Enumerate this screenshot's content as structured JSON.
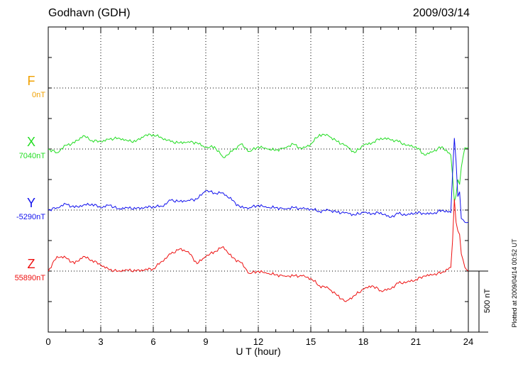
{
  "header": {
    "station": "Godhavn (GDH)",
    "date": "2009/03/14"
  },
  "colors": {
    "F": "#f0a000",
    "X": "#22dd22",
    "Y": "#1010ee",
    "Z": "#ee1010",
    "axis": "#000000"
  },
  "components": [
    {
      "key": "F",
      "letter": "F",
      "baseline_label": "0nT"
    },
    {
      "key": "X",
      "letter": "X",
      "baseline_label": "7040nT"
    },
    {
      "key": "Y",
      "letter": "Y",
      "baseline_label": "-5290nT"
    },
    {
      "key": "Z",
      "letter": "Z",
      "baseline_label": "55890nT"
    }
  ],
  "scale_bar": {
    "label": "500 nT",
    "value_nT": 500
  },
  "footnote": "Plotted at 2009/04/14 00:52 UT",
  "chart_data": {
    "type": "line",
    "title": "Godhavn (GDH) 2009/03/14",
    "xlabel": "U T (hour)",
    "ylabel": "",
    "xlim": [
      0,
      24
    ],
    "xticks": [
      0,
      3,
      6,
      9,
      12,
      15,
      18,
      21,
      24
    ],
    "units": "nT",
    "grid": true,
    "series": [
      {
        "name": "X",
        "baseline_nT": 7040,
        "x": [
          0,
          0.5,
          1,
          1.5,
          2,
          2.5,
          3,
          3.5,
          4,
          4.5,
          5,
          5.5,
          6,
          6.5,
          7,
          7.5,
          8,
          8.5,
          9,
          9.5,
          10,
          10.5,
          11,
          11.5,
          12,
          12.5,
          13,
          13.5,
          14,
          14.5,
          15,
          15.5,
          16,
          16.5,
          17,
          17.5,
          18,
          18.5,
          19,
          19.5,
          20,
          20.5,
          21,
          21.5,
          22,
          22.5,
          23,
          23.1,
          23.2,
          23.3,
          23.4,
          23.5,
          23.6,
          23.8,
          24
        ],
        "y": [
          0,
          -30,
          30,
          50,
          110,
          70,
          60,
          80,
          90,
          70,
          60,
          110,
          120,
          90,
          60,
          50,
          60,
          50,
          10,
          20,
          -70,
          -20,
          40,
          -20,
          20,
          0,
          -10,
          10,
          40,
          0,
          40,
          120,
          110,
          60,
          30,
          -30,
          30,
          50,
          90,
          80,
          60,
          30,
          20,
          -50,
          -20,
          20,
          -50,
          -220,
          -430,
          -380,
          -250,
          -290,
          -150,
          10,
          10
        ]
      },
      {
        "name": "Y",
        "baseline_nT": -5290,
        "x": [
          0,
          0.5,
          1,
          1.5,
          2,
          2.5,
          3,
          3.5,
          4,
          4.5,
          5,
          5.5,
          6,
          6.5,
          7,
          7.5,
          8,
          8.5,
          9,
          9.5,
          10,
          10.5,
          11,
          11.5,
          12,
          12.5,
          13,
          13.5,
          14,
          14.5,
          15,
          15.5,
          16,
          16.5,
          17,
          17.5,
          18,
          18.5,
          19,
          19.5,
          20,
          20.5,
          21,
          21.5,
          22,
          22.5,
          23,
          23.1,
          23.2,
          23.3,
          23.4,
          23.5,
          23.6,
          23.8,
          24
        ],
        "y": [
          0,
          20,
          50,
          20,
          40,
          50,
          20,
          40,
          10,
          20,
          10,
          20,
          30,
          30,
          80,
          70,
          80,
          90,
          160,
          140,
          140,
          80,
          20,
          20,
          40,
          20,
          20,
          10,
          20,
          10,
          10,
          -10,
          0,
          -20,
          -20,
          -40,
          -20,
          -30,
          -20,
          -60,
          -30,
          -40,
          -20,
          -30,
          -30,
          0,
          -20,
          300,
          590,
          400,
          110,
          150,
          -70,
          -100,
          -100
        ]
      },
      {
        "name": "Z",
        "baseline_nT": 55890,
        "x": [
          0,
          0.5,
          1,
          1.5,
          2,
          2.5,
          3,
          3.5,
          4,
          4.5,
          5,
          5.5,
          6,
          6.5,
          7,
          7.5,
          8,
          8.5,
          9,
          9.5,
          10,
          10.5,
          11,
          11.5,
          12,
          12.5,
          13,
          13.5,
          14,
          14.5,
          15,
          15.5,
          16,
          16.5,
          17,
          17.5,
          18,
          18.5,
          19,
          19.5,
          20,
          20.5,
          21,
          21.5,
          22,
          22.5,
          23,
          23.1,
          23.2,
          23.3,
          23.4,
          23.5,
          23.6,
          23.8,
          24
        ],
        "y": [
          0,
          120,
          110,
          60,
          120,
          90,
          50,
          10,
          0,
          10,
          0,
          10,
          20,
          80,
          140,
          180,
          160,
          60,
          120,
          160,
          200,
          110,
          70,
          -20,
          0,
          -20,
          -30,
          -40,
          -40,
          -40,
          -60,
          -120,
          -140,
          -200,
          -250,
          -200,
          -150,
          -120,
          -160,
          -150,
          -100,
          -90,
          -70,
          -40,
          -30,
          -10,
          30,
          250,
          590,
          400,
          330,
          300,
          140,
          30,
          0
        ]
      }
    ]
  }
}
